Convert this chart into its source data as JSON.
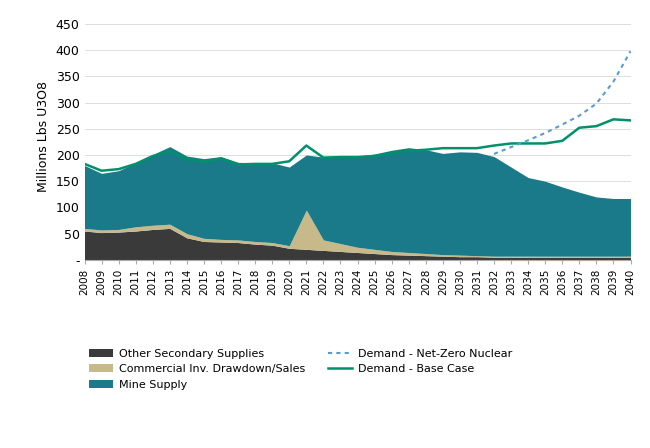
{
  "years": [
    2008,
    2009,
    2010,
    2011,
    2012,
    2013,
    2014,
    2015,
    2016,
    2017,
    2018,
    2019,
    2020,
    2021,
    2022,
    2023,
    2024,
    2025,
    2026,
    2027,
    2028,
    2029,
    2030,
    2031,
    2032,
    2033,
    2034,
    2035,
    2036,
    2037,
    2038,
    2039,
    2040
  ],
  "other_secondary": [
    55,
    52,
    53,
    55,
    58,
    60,
    42,
    35,
    34,
    33,
    30,
    28,
    22,
    20,
    18,
    16,
    14,
    12,
    10,
    9,
    8,
    7,
    6,
    6,
    5,
    5,
    5,
    5,
    5,
    5,
    5,
    5,
    5
  ],
  "commercial_inv": [
    5,
    5,
    5,
    8,
    8,
    8,
    8,
    6,
    5,
    5,
    5,
    5,
    5,
    75,
    20,
    15,
    10,
    8,
    6,
    5,
    4,
    3,
    3,
    2,
    2,
    2,
    2,
    2,
    2,
    2,
    2,
    2,
    2
  ],
  "mine_supply": [
    120,
    108,
    112,
    122,
    135,
    148,
    148,
    152,
    158,
    148,
    150,
    152,
    150,
    105,
    158,
    168,
    174,
    182,
    193,
    200,
    198,
    193,
    197,
    197,
    190,
    170,
    150,
    143,
    132,
    122,
    113,
    110,
    110
  ],
  "demand_base": [
    183,
    170,
    173,
    183,
    198,
    207,
    192,
    188,
    193,
    182,
    183,
    183,
    188,
    218,
    195,
    196,
    196,
    198,
    203,
    208,
    210,
    213,
    213,
    213,
    218,
    222,
    222,
    222,
    227,
    252,
    255,
    268,
    266
  ],
  "demand_netzero": [
    null,
    null,
    null,
    null,
    null,
    null,
    null,
    null,
    null,
    null,
    null,
    null,
    null,
    null,
    null,
    null,
    null,
    null,
    null,
    null,
    null,
    null,
    null,
    null,
    202,
    215,
    228,
    242,
    258,
    275,
    298,
    340,
    398
  ],
  "color_other_secondary": "#3a3a3a",
  "color_commercial_inv": "#c8b98a",
  "color_mine_supply": "#1a7a8a",
  "color_demand_base": "#00916b",
  "color_demand_netzero": "#5b9bd5",
  "ylabel": "Millions Lbs U3O8",
  "ylim": [
    0,
    470
  ],
  "yticks": [
    0,
    50,
    100,
    150,
    200,
    250,
    300,
    350,
    400,
    450
  ],
  "ytick_labels": [
    "-",
    "50",
    "100",
    "150",
    "200",
    "250",
    "300",
    "350",
    "400",
    "450"
  ]
}
